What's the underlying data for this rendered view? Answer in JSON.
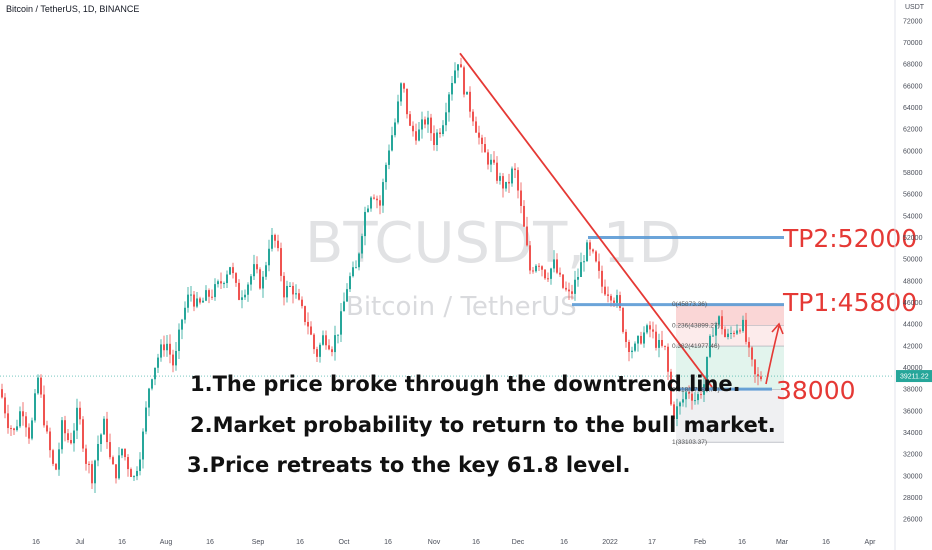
{
  "header": {
    "symbol_line": "Bitcoin / TetherUS, 1D, BINANCE"
  },
  "axis": {
    "currency_label": "USDT"
  },
  "watermark": {
    "ticker": "BTCUSDT, 1D",
    "name": "Bitcoin / TetherUS"
  },
  "price_tag": {
    "value": "39211.22"
  },
  "annotations": {
    "note1": "1.The price broke through the downtrend line.",
    "note2": "2.Market probability to return to the bull market.",
    "note3": "3.Price retreats to the key 61.8 level.",
    "tp2": "TP2:52000",
    "tp1": "TP1:45800",
    "support": "38000"
  },
  "colors": {
    "up": "#26a69a",
    "down": "#ef5350",
    "trend": "#e53935",
    "level": "#5b9bd5",
    "fib_red": "#f8c4c4",
    "fib_green": "#d6f0e6",
    "fib_gray": "#e8e9ed"
  },
  "chart_data": {
    "type": "candlestick",
    "y_range": [
      25000,
      73000
    ],
    "y_ticks": [
      26000,
      28000,
      30000,
      32000,
      34000,
      36000,
      38000,
      40000,
      42000,
      44000,
      46000,
      48000,
      50000,
      52000,
      54000,
      56000,
      58000,
      60000,
      62000,
      64000,
      66000,
      68000,
      70000,
      72000
    ],
    "x_labels": [
      "16",
      "Jul",
      "16",
      "Aug",
      "16",
      "Sep",
      "16",
      "Oct",
      "16",
      "Nov",
      "16",
      "Dec",
      "16",
      "2022",
      "17",
      "Feb",
      "16",
      "Mar",
      "16",
      "Apr"
    ],
    "price_path": [
      [
        0,
        38000
      ],
      [
        8,
        35000
      ],
      [
        14,
        34000
      ],
      [
        22,
        36500
      ],
      [
        30,
        33500
      ],
      [
        38,
        39000
      ],
      [
        46,
        34000
      ],
      [
        55,
        30000
      ],
      [
        62,
        34500
      ],
      [
        70,
        33000
      ],
      [
        78,
        36000
      ],
      [
        86,
        31500
      ],
      [
        92,
        30000
      ],
      [
        98,
        33000
      ],
      [
        105,
        35000
      ],
      [
        110,
        31500
      ],
      [
        115,
        30000
      ],
      [
        122,
        32500
      ],
      [
        128,
        31000
      ],
      [
        134,
        29800
      ],
      [
        142,
        33000
      ],
      [
        150,
        39000
      ],
      [
        158,
        41000
      ],
      [
        166,
        42500
      ],
      [
        174,
        40000
      ],
      [
        182,
        44500
      ],
      [
        190,
        47000
      ],
      [
        198,
        45500
      ],
      [
        206,
        46500
      ],
      [
        214,
        47000
      ],
      [
        222,
        48000
      ],
      [
        230,
        49500
      ],
      [
        238,
        46500
      ],
      [
        246,
        47500
      ],
      [
        254,
        49000
      ],
      [
        262,
        47500
      ],
      [
        270,
        52000
      ],
      [
        276,
        51500
      ],
      [
        284,
        47000
      ],
      [
        292,
        47500
      ],
      [
        300,
        45500
      ],
      [
        308,
        44000
      ],
      [
        316,
        41000
      ],
      [
        324,
        43000
      ],
      [
        332,
        42000
      ],
      [
        340,
        44000
      ],
      [
        348,
        48000
      ],
      [
        356,
        49000
      ],
      [
        364,
        54000
      ],
      [
        372,
        56500
      ],
      [
        380,
        55000
      ],
      [
        388,
        60000
      ],
      [
        396,
        63000
      ],
      [
        402,
        66500
      ],
      [
        410,
        62000
      ],
      [
        418,
        61500
      ],
      [
        426,
        63000
      ],
      [
        434,
        61000
      ],
      [
        442,
        62500
      ],
      [
        450,
        66000
      ],
      [
        458,
        68500
      ],
      [
        466,
        65000
      ],
      [
        474,
        63000
      ],
      [
        482,
        60000
      ],
      [
        490,
        59000
      ],
      [
        498,
        57500
      ],
      [
        506,
        56500
      ],
      [
        514,
        58500
      ],
      [
        522,
        54000
      ],
      [
        530,
        49000
      ],
      [
        538,
        50000
      ],
      [
        546,
        48500
      ],
      [
        554,
        49500
      ],
      [
        562,
        47500
      ],
      [
        570,
        46500
      ],
      [
        578,
        48500
      ],
      [
        586,
        51000
      ],
      [
        594,
        50000
      ],
      [
        602,
        47500
      ],
      [
        610,
        47000
      ],
      [
        618,
        46000
      ],
      [
        626,
        42500
      ],
      [
        634,
        41500
      ],
      [
        642,
        43000
      ],
      [
        650,
        43500
      ],
      [
        658,
        42000
      ],
      [
        666,
        41500
      ],
      [
        672,
        35500
      ],
      [
        680,
        36500
      ],
      [
        688,
        38000
      ],
      [
        696,
        37000
      ],
      [
        704,
        38500
      ],
      [
        712,
        43500
      ],
      [
        720,
        44500
      ],
      [
        726,
        42500
      ],
      [
        734,
        43500
      ],
      [
        742,
        44200
      ],
      [
        748,
        41500
      ],
      [
        756,
        38800
      ],
      [
        762,
        39200
      ]
    ],
    "trendline": {
      "from": [
        460,
        69000
      ],
      "to": [
        712,
        38200
      ]
    },
    "levels": [
      {
        "value": 52000,
        "x_from": 588,
        "x_to": 784
      },
      {
        "value": 45800,
        "x_from": 572,
        "x_to": 784
      },
      {
        "value": 38000,
        "x_from": 676,
        "x_to": 772
      }
    ],
    "fib": {
      "x_from": 676,
      "x_to": 784,
      "levels": [
        {
          "ratio": "0",
          "price": "45873.36",
          "value": 45873
        },
        {
          "ratio": "0.236",
          "price": "43899.27",
          "value": 43899
        },
        {
          "ratio": "0.382",
          "price": "41977.46",
          "value": 41977
        },
        {
          "ratio": "0.618",
          "price": "37980.77",
          "value": 37981
        },
        {
          "ratio": "1",
          "price": "33103.37",
          "value": 33103
        }
      ]
    },
    "current_price": 39211.22
  }
}
